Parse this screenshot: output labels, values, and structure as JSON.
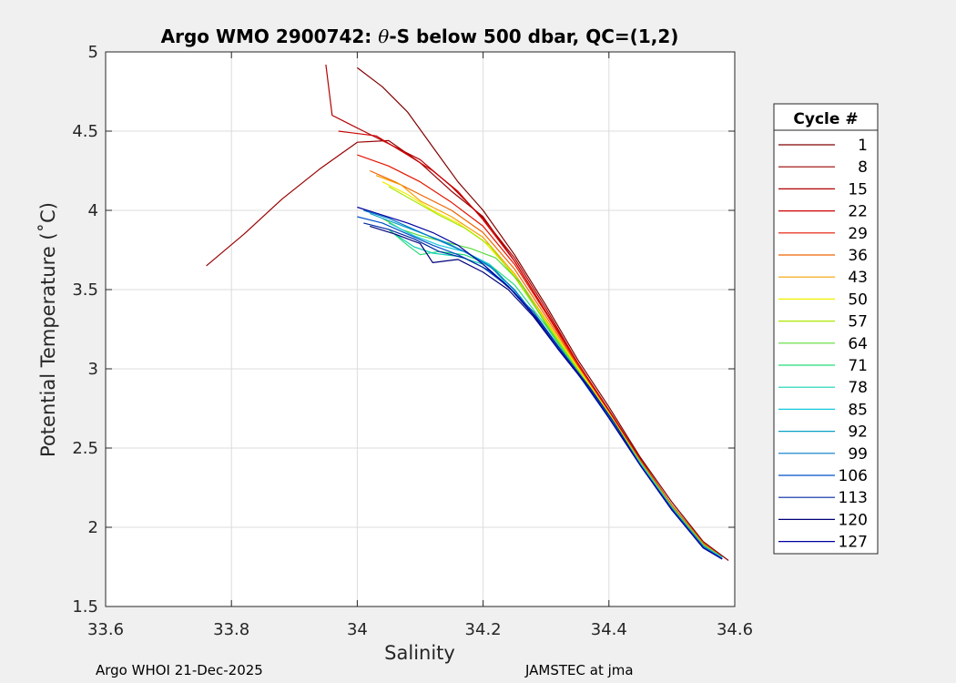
{
  "chart_data": {
    "type": "line",
    "title_prefix": "Argo WMO 2900742: ",
    "title_theta": "θ",
    "title_suffix": "-S below 500 dbar,  QC=(1,2)",
    "xlabel": "Salinity",
    "ylabel": "Potential Temperature (˚C)",
    "xlim": [
      33.6,
      34.6
    ],
    "ylim": [
      1.5,
      5.0
    ],
    "xticks": [
      33.6,
      33.8,
      34.0,
      34.2,
      34.4,
      34.6
    ],
    "xtick_labels": [
      "33.6",
      "33.8",
      "34",
      "34.2",
      "34.4",
      "34.6"
    ],
    "yticks": [
      1.5,
      2.0,
      2.5,
      3.0,
      3.5,
      4.0,
      4.5,
      5.0
    ],
    "ytick_labels": [
      "1.5",
      "2",
      "2.5",
      "3",
      "3.5",
      "4",
      "4.5",
      "5"
    ],
    "grid": true,
    "legend_title": "Cycle #",
    "legend_position": "outside-right",
    "series": [
      {
        "name": "1",
        "color": "#800000",
        "points": [
          [
            34.0,
            4.9
          ],
          [
            34.04,
            4.78
          ],
          [
            34.08,
            4.62
          ],
          [
            34.12,
            4.4
          ],
          [
            34.16,
            4.18
          ],
          [
            34.2,
            4.0
          ],
          [
            34.25,
            3.72
          ],
          [
            34.3,
            3.4
          ],
          [
            34.35,
            3.06
          ],
          [
            34.4,
            2.76
          ],
          [
            34.45,
            2.44
          ],
          [
            34.5,
            2.16
          ],
          [
            34.55,
            1.91
          ],
          [
            34.59,
            1.79
          ]
        ]
      },
      {
        "name": "8",
        "color": "#990000",
        "points": [
          [
            33.76,
            3.65
          ],
          [
            33.82,
            3.85
          ],
          [
            33.88,
            4.07
          ],
          [
            33.94,
            4.26
          ],
          [
            34.0,
            4.43
          ],
          [
            34.05,
            4.44
          ],
          [
            34.1,
            4.3
          ],
          [
            34.15,
            4.12
          ],
          [
            34.2,
            3.96
          ],
          [
            34.25,
            3.68
          ],
          [
            34.3,
            3.36
          ],
          [
            34.35,
            3.03
          ],
          [
            34.4,
            2.73
          ],
          [
            34.45,
            2.42
          ],
          [
            34.5,
            2.14
          ],
          [
            34.55,
            1.9
          ],
          [
            34.58,
            1.81
          ]
        ]
      },
      {
        "name": "15",
        "color": "#b20000",
        "points": [
          [
            33.95,
            4.92
          ],
          [
            33.96,
            4.6
          ],
          [
            34.02,
            4.48
          ],
          [
            34.06,
            4.4
          ],
          [
            34.1,
            4.32
          ],
          [
            34.15,
            4.15
          ],
          [
            34.2,
            3.95
          ],
          [
            34.25,
            3.7
          ],
          [
            34.3,
            3.38
          ],
          [
            34.35,
            3.04
          ],
          [
            34.4,
            2.74
          ],
          [
            34.45,
            2.43
          ],
          [
            34.5,
            2.14
          ],
          [
            34.55,
            1.9
          ],
          [
            34.58,
            1.81
          ]
        ]
      },
      {
        "name": "22",
        "color": "#cc0000",
        "points": [
          [
            33.97,
            4.5
          ],
          [
            34.03,
            4.47
          ],
          [
            34.08,
            4.35
          ],
          [
            34.12,
            4.25
          ],
          [
            34.16,
            4.12
          ],
          [
            34.2,
            3.94
          ],
          [
            34.25,
            3.68
          ],
          [
            34.3,
            3.36
          ],
          [
            34.35,
            3.04
          ],
          [
            34.4,
            2.73
          ],
          [
            34.45,
            2.42
          ],
          [
            34.5,
            2.14
          ],
          [
            34.55,
            1.9
          ],
          [
            34.58,
            1.81
          ]
        ]
      },
      {
        "name": "29",
        "color": "#e51400",
        "points": [
          [
            34.0,
            4.35
          ],
          [
            34.05,
            4.28
          ],
          [
            34.1,
            4.18
          ],
          [
            34.15,
            4.05
          ],
          [
            34.2,
            3.9
          ],
          [
            34.25,
            3.66
          ],
          [
            34.3,
            3.35
          ],
          [
            34.35,
            3.03
          ],
          [
            34.4,
            2.73
          ],
          [
            34.45,
            2.42
          ],
          [
            34.5,
            2.14
          ],
          [
            34.55,
            1.9
          ],
          [
            34.58,
            1.81
          ]
        ]
      },
      {
        "name": "36",
        "color": "#f06400",
        "points": [
          [
            34.02,
            4.25
          ],
          [
            34.06,
            4.18
          ],
          [
            34.1,
            4.1
          ],
          [
            34.15,
            4.0
          ],
          [
            34.2,
            3.86
          ],
          [
            34.25,
            3.63
          ],
          [
            34.3,
            3.33
          ],
          [
            34.35,
            3.02
          ],
          [
            34.4,
            2.72
          ],
          [
            34.45,
            2.42
          ],
          [
            34.5,
            2.14
          ],
          [
            34.55,
            1.9
          ],
          [
            34.58,
            1.81
          ]
        ]
      },
      {
        "name": "43",
        "color": "#f5a000",
        "points": [
          [
            34.03,
            4.22
          ],
          [
            34.07,
            4.16
          ],
          [
            34.1,
            4.06
          ],
          [
            34.15,
            3.96
          ],
          [
            34.2,
            3.83
          ],
          [
            34.25,
            3.6
          ],
          [
            34.3,
            3.31
          ],
          [
            34.35,
            3.01
          ],
          [
            34.4,
            2.72
          ],
          [
            34.45,
            2.41
          ],
          [
            34.5,
            2.13
          ],
          [
            34.55,
            1.89
          ],
          [
            34.58,
            1.81
          ]
        ]
      },
      {
        "name": "50",
        "color": "#f0f000",
        "points": [
          [
            34.04,
            4.18
          ],
          [
            34.08,
            4.1
          ],
          [
            34.12,
            4.0
          ],
          [
            34.16,
            3.92
          ],
          [
            34.2,
            3.81
          ],
          [
            34.25,
            3.59
          ],
          [
            34.3,
            3.3
          ],
          [
            34.35,
            3.01
          ],
          [
            34.4,
            2.72
          ],
          [
            34.45,
            2.41
          ],
          [
            34.5,
            2.13
          ],
          [
            34.55,
            1.89
          ],
          [
            34.58,
            1.81
          ]
        ]
      },
      {
        "name": "57",
        "color": "#aae600",
        "points": [
          [
            34.05,
            4.15
          ],
          [
            34.09,
            4.06
          ],
          [
            34.13,
            3.97
          ],
          [
            34.17,
            3.89
          ],
          [
            34.21,
            3.78
          ],
          [
            34.25,
            3.58
          ],
          [
            34.3,
            3.29
          ],
          [
            34.35,
            3.0
          ],
          [
            34.4,
            2.71
          ],
          [
            34.45,
            2.41
          ],
          [
            34.5,
            2.13
          ],
          [
            34.55,
            1.89
          ],
          [
            34.58,
            1.81
          ]
        ]
      },
      {
        "name": "64",
        "color": "#5adc3c",
        "points": [
          [
            34.04,
            3.95
          ],
          [
            34.07,
            3.88
          ],
          [
            34.1,
            3.84
          ],
          [
            34.14,
            3.8
          ],
          [
            34.18,
            3.76
          ],
          [
            34.22,
            3.7
          ],
          [
            34.26,
            3.54
          ],
          [
            34.3,
            3.28
          ],
          [
            34.35,
            2.99
          ],
          [
            34.4,
            2.71
          ],
          [
            34.45,
            2.41
          ],
          [
            34.5,
            2.13
          ],
          [
            34.55,
            1.89
          ],
          [
            34.58,
            1.81
          ]
        ]
      },
      {
        "name": "71",
        "color": "#28dc78",
        "points": [
          [
            34.05,
            3.88
          ],
          [
            34.08,
            3.78
          ],
          [
            34.1,
            3.72
          ],
          [
            34.13,
            3.74
          ],
          [
            34.17,
            3.72
          ],
          [
            34.21,
            3.66
          ],
          [
            34.25,
            3.53
          ],
          [
            34.3,
            3.27
          ],
          [
            34.35,
            2.98
          ],
          [
            34.4,
            2.7
          ],
          [
            34.45,
            2.4
          ],
          [
            34.5,
            2.12
          ],
          [
            34.55,
            1.88
          ],
          [
            34.58,
            1.81
          ]
        ]
      },
      {
        "name": "78",
        "color": "#14d2b4",
        "points": [
          [
            34.06,
            3.85
          ],
          [
            34.09,
            3.77
          ],
          [
            34.12,
            3.73
          ],
          [
            34.16,
            3.71
          ],
          [
            34.2,
            3.66
          ],
          [
            34.24,
            3.52
          ],
          [
            34.28,
            3.34
          ],
          [
            34.32,
            3.13
          ],
          [
            34.36,
            2.93
          ],
          [
            34.4,
            2.7
          ],
          [
            34.45,
            2.4
          ],
          [
            34.5,
            2.12
          ],
          [
            34.55,
            1.88
          ],
          [
            34.58,
            1.81
          ]
        ]
      },
      {
        "name": "85",
        "color": "#14c8dc",
        "points": [
          [
            34.05,
            3.92
          ],
          [
            34.09,
            3.84
          ],
          [
            34.13,
            3.78
          ],
          [
            34.17,
            3.74
          ],
          [
            34.21,
            3.66
          ],
          [
            34.24,
            3.52
          ],
          [
            34.28,
            3.34
          ],
          [
            34.32,
            3.13
          ],
          [
            34.36,
            2.93
          ],
          [
            34.4,
            2.7
          ],
          [
            34.45,
            2.4
          ],
          [
            34.5,
            2.12
          ],
          [
            34.55,
            1.88
          ],
          [
            34.58,
            1.81
          ]
        ]
      },
      {
        "name": "92",
        "color": "#0aa0c8",
        "points": [
          [
            34.02,
            3.98
          ],
          [
            34.06,
            3.92
          ],
          [
            34.1,
            3.86
          ],
          [
            34.14,
            3.8
          ],
          [
            34.18,
            3.72
          ],
          [
            34.22,
            3.62
          ],
          [
            34.26,
            3.45
          ],
          [
            34.3,
            3.24
          ],
          [
            34.35,
            2.98
          ],
          [
            34.4,
            2.7
          ],
          [
            34.45,
            2.39
          ],
          [
            34.5,
            2.12
          ],
          [
            34.55,
            1.88
          ],
          [
            34.58,
            1.8
          ]
        ]
      },
      {
        "name": "99",
        "color": "#0078c8",
        "points": [
          [
            34.01,
            4.0
          ],
          [
            34.05,
            3.95
          ],
          [
            34.09,
            3.88
          ],
          [
            34.13,
            3.81
          ],
          [
            34.17,
            3.74
          ],
          [
            34.21,
            3.65
          ],
          [
            34.25,
            3.5
          ],
          [
            34.3,
            3.24
          ],
          [
            34.35,
            2.97
          ],
          [
            34.4,
            2.69
          ],
          [
            34.45,
            2.39
          ],
          [
            34.5,
            2.12
          ],
          [
            34.55,
            1.88
          ],
          [
            34.58,
            1.8
          ]
        ]
      },
      {
        "name": "106",
        "color": "#0050c8",
        "points": [
          [
            34.0,
            3.96
          ],
          [
            34.04,
            3.92
          ],
          [
            34.08,
            3.85
          ],
          [
            34.12,
            3.78
          ],
          [
            34.16,
            3.72
          ],
          [
            34.2,
            3.64
          ],
          [
            34.24,
            3.52
          ],
          [
            34.28,
            3.36
          ],
          [
            34.32,
            3.14
          ],
          [
            34.36,
            2.93
          ],
          [
            34.4,
            2.69
          ],
          [
            34.45,
            2.39
          ],
          [
            34.5,
            2.11
          ],
          [
            34.55,
            1.87
          ],
          [
            34.58,
            1.8
          ]
        ]
      },
      {
        "name": "113",
        "color": "#0028a0",
        "points": [
          [
            34.01,
            3.92
          ],
          [
            34.05,
            3.88
          ],
          [
            34.09,
            3.82
          ],
          [
            34.13,
            3.74
          ],
          [
            34.17,
            3.7
          ],
          [
            34.21,
            3.62
          ],
          [
            34.25,
            3.48
          ],
          [
            34.29,
            3.3
          ],
          [
            34.33,
            3.08
          ],
          [
            34.37,
            2.88
          ],
          [
            34.41,
            2.65
          ],
          [
            34.45,
            2.39
          ],
          [
            34.5,
            2.11
          ],
          [
            34.55,
            1.87
          ],
          [
            34.58,
            1.8
          ]
        ]
      },
      {
        "name": "120",
        "color": "#000078",
        "points": [
          [
            34.02,
            3.9
          ],
          [
            34.06,
            3.85
          ],
          [
            34.1,
            3.79
          ],
          [
            34.12,
            3.67
          ],
          [
            34.16,
            3.69
          ],
          [
            34.2,
            3.61
          ],
          [
            34.24,
            3.5
          ],
          [
            34.28,
            3.33
          ],
          [
            34.32,
            3.12
          ],
          [
            34.36,
            2.92
          ],
          [
            34.4,
            2.69
          ],
          [
            34.45,
            2.39
          ],
          [
            34.5,
            2.11
          ],
          [
            34.55,
            1.87
          ],
          [
            34.58,
            1.8
          ]
        ]
      },
      {
        "name": "127",
        "color": "#0000a0",
        "points": [
          [
            34.0,
            4.02
          ],
          [
            34.04,
            3.97
          ],
          [
            34.08,
            3.92
          ],
          [
            34.12,
            3.86
          ],
          [
            34.16,
            3.78
          ],
          [
            34.2,
            3.66
          ],
          [
            34.24,
            3.52
          ],
          [
            34.28,
            3.34
          ],
          [
            34.32,
            3.12
          ],
          [
            34.36,
            2.92
          ],
          [
            34.4,
            2.69
          ],
          [
            34.45,
            2.39
          ],
          [
            34.5,
            2.11
          ],
          [
            34.55,
            1.87
          ],
          [
            34.58,
            1.8
          ]
        ]
      }
    ]
  },
  "footer": {
    "left": "Argo WHOI 21-Dec-2025",
    "right": "JAMSTEC at jma"
  }
}
